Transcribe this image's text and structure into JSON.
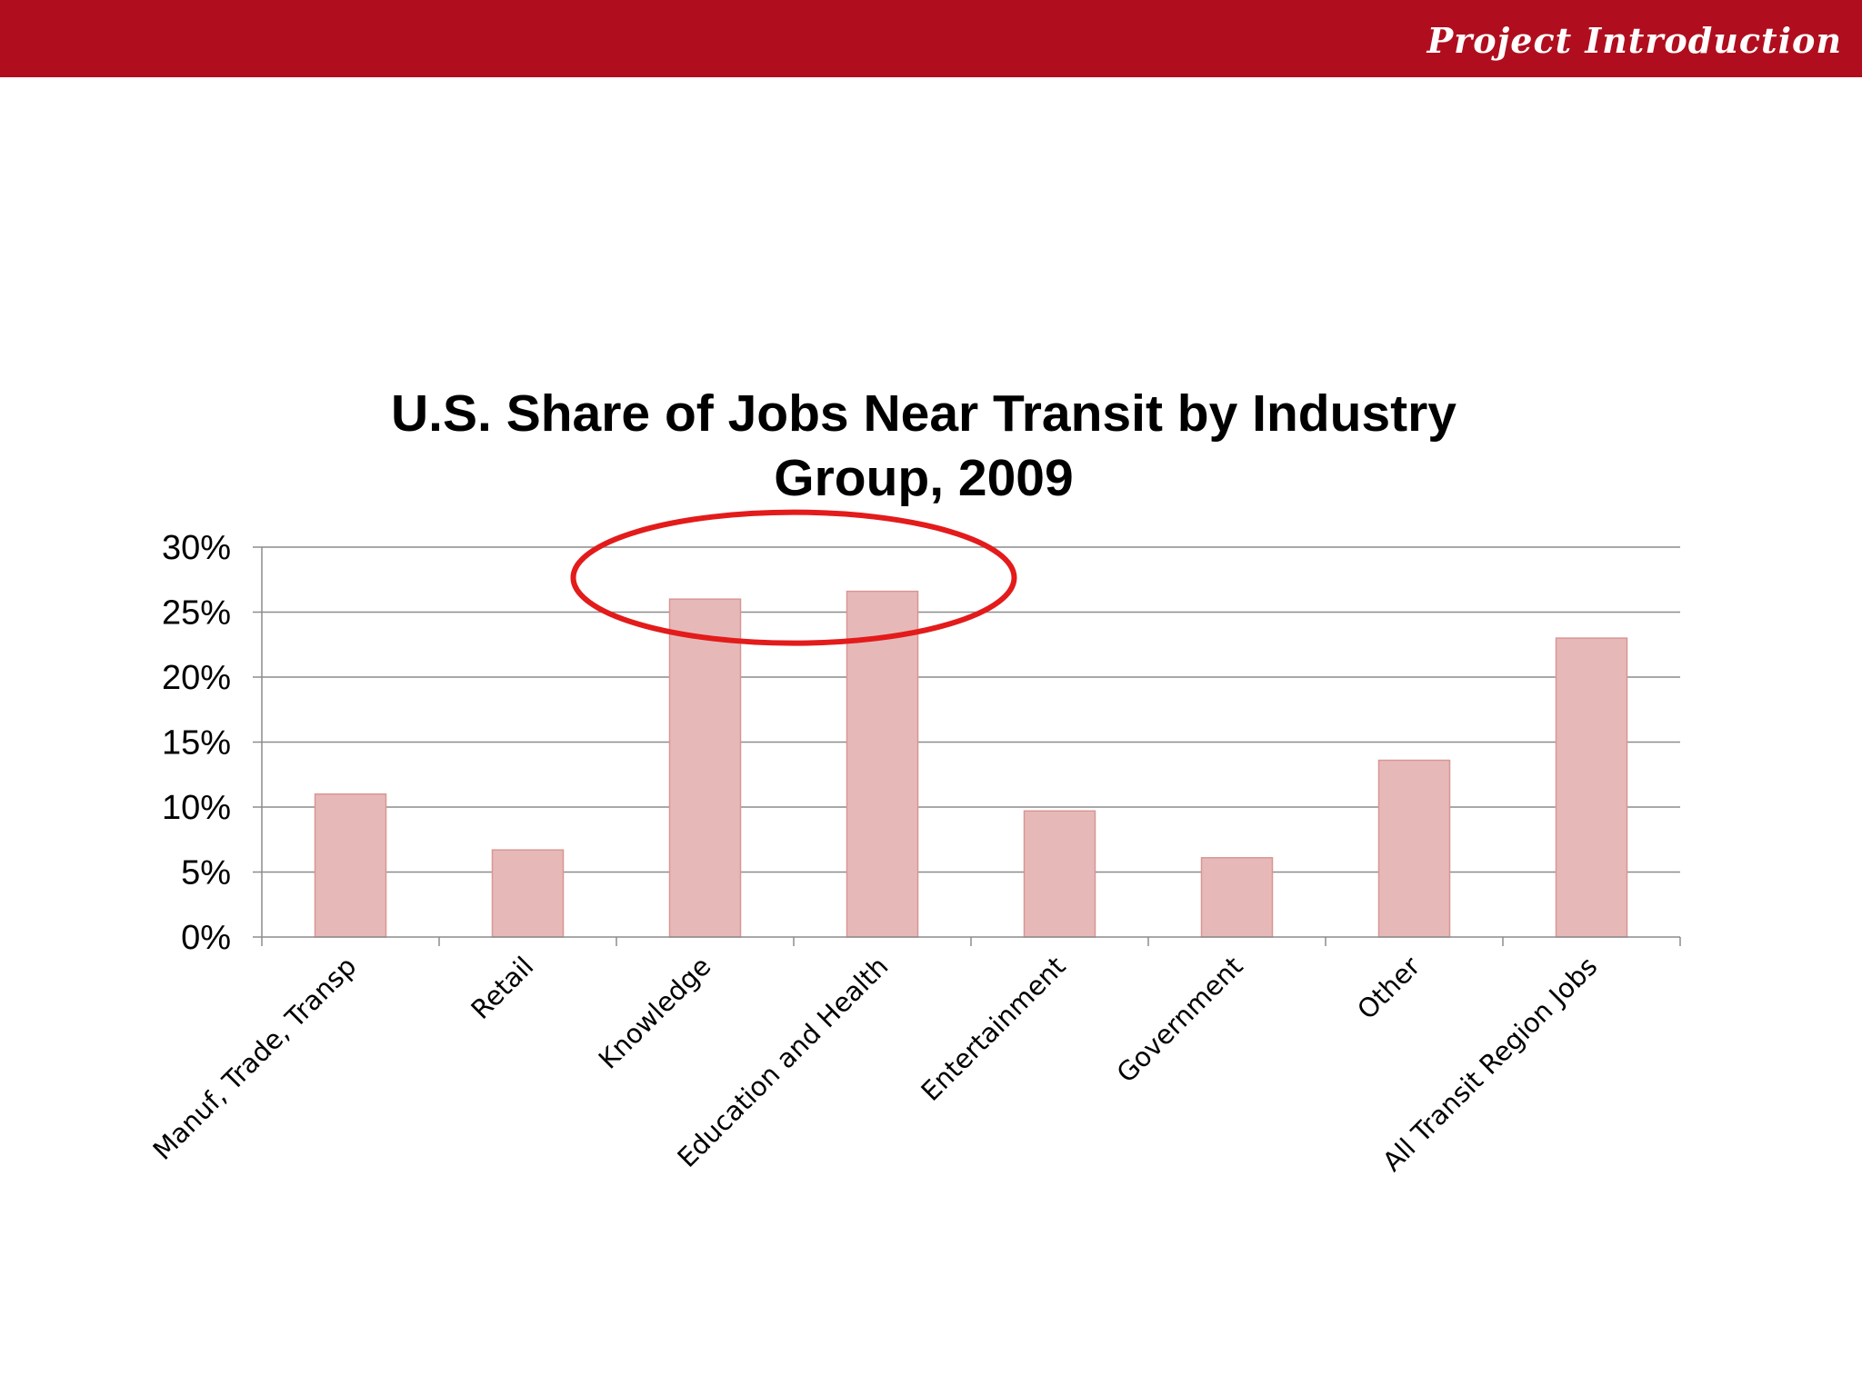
{
  "header": {
    "section_title": "Project Introduction",
    "accent_color": "#b00e1e"
  },
  "chart_data": {
    "type": "bar",
    "title_lines": [
      "U.S. Share of Jobs Near Transit by Industry",
      "Group, 2009"
    ],
    "categories": [
      "Manuf, Trade, Transp",
      "Retail",
      "Knowledge",
      "Education and Health",
      "Entertainment",
      "Government",
      "Other",
      "All Transit Region Jobs"
    ],
    "values": [
      11.0,
      6.7,
      26.0,
      26.6,
      9.7,
      6.1,
      13.6,
      23.0
    ],
    "value_unit": "%",
    "ylim": [
      0,
      30
    ],
    "y_ticks": [
      0,
      5,
      10,
      15,
      20,
      25,
      30
    ],
    "y_tick_labels": [
      "0%",
      "5%",
      "10%",
      "15%",
      "20%",
      "25%",
      "30%"
    ],
    "xlabel": "",
    "ylabel": "",
    "grid": true,
    "legend": "none",
    "bar_color": "#e6b9b8",
    "bar_edge_color": "#d99695",
    "annotation": {
      "shape": "ellipse",
      "color": "#e31b1b",
      "highlights": [
        "Knowledge",
        "Education and Health"
      ]
    }
  }
}
